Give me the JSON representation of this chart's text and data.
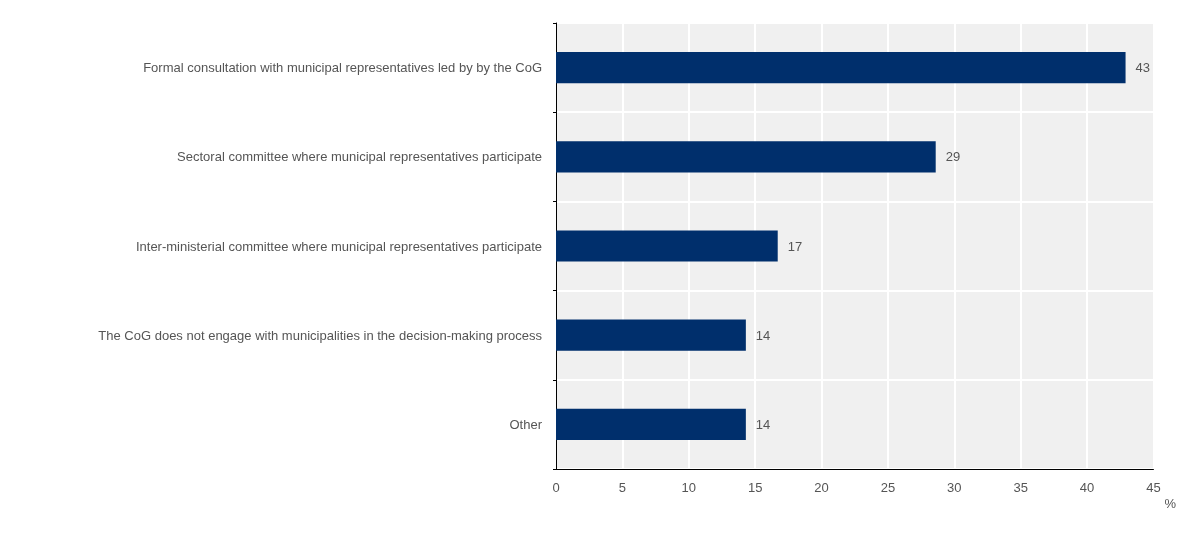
{
  "chart_data": {
    "type": "bar",
    "orientation": "horizontal",
    "xlabel": "%",
    "categories": [
      "Formal consultation with municipal representatives led by by the CoG",
      "Sectoral committee where municipal representatives participate",
      "Inter-ministerial committee where municipal representatives participate",
      "The CoG does not engage with municipalities in the decision-making process",
      "Other"
    ],
    "values": [
      42.9,
      28.6,
      16.7,
      14.3,
      14.3
    ],
    "value_labels": [
      "43",
      "29",
      "17",
      "14",
      "14"
    ],
    "color": "#002f6c",
    "xlim": [
      0,
      45
    ],
    "xticks": [
      0,
      5,
      10,
      15,
      20,
      25,
      30,
      35,
      40,
      45
    ],
    "grid": true
  }
}
